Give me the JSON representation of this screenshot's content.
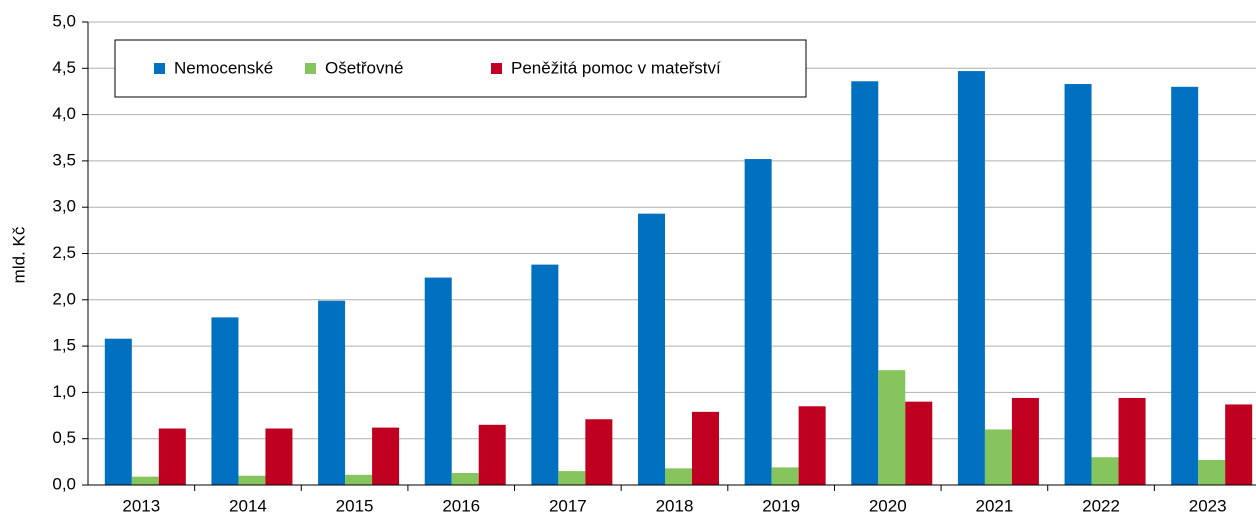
{
  "chart_data": {
    "type": "bar",
    "ylabel": "mld. Kč",
    "categories": [
      "2013",
      "2014",
      "2015",
      "2016",
      "2017",
      "2018",
      "2019",
      "2020",
      "2021",
      "2022",
      "2023"
    ],
    "series": [
      {
        "name": "Nemocenské",
        "color": "#0070c0",
        "values": [
          1.58,
          1.81,
          1.99,
          2.24,
          2.38,
          2.93,
          3.52,
          4.36,
          4.47,
          4.33,
          4.3
        ]
      },
      {
        "name": "Ošetřovné",
        "color": "#86c55e",
        "values": [
          0.09,
          0.1,
          0.11,
          0.13,
          0.15,
          0.18,
          0.19,
          1.24,
          0.6,
          0.3,
          0.27
        ]
      },
      {
        "name": "Peněžitá pomoc v mateřství",
        "color": "#c00020",
        "values": [
          0.61,
          0.61,
          0.62,
          0.65,
          0.71,
          0.79,
          0.85,
          0.9,
          0.94,
          0.94,
          0.87
        ]
      }
    ],
    "ylim": [
      0,
      5
    ],
    "yticks": [
      {
        "value": 0,
        "label": "0,0"
      },
      {
        "value": 0.5,
        "label": "0,5"
      },
      {
        "value": 1,
        "label": "1,0"
      },
      {
        "value": 1.5,
        "label": "1,5"
      },
      {
        "value": 2,
        "label": "2,0"
      },
      {
        "value": 2.5,
        "label": "2,5"
      },
      {
        "value": 3,
        "label": "3,0"
      },
      {
        "value": 3.5,
        "label": "3,5"
      },
      {
        "value": 4,
        "label": "4,0"
      },
      {
        "value": 4.5,
        "label": "4,5"
      },
      {
        "value": 5,
        "label": "5,0"
      }
    ],
    "grid": true,
    "legend": "top-left"
  }
}
